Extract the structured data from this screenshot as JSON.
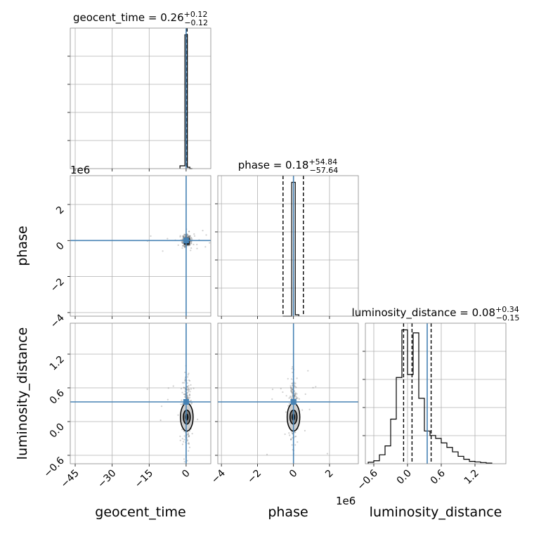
{
  "chart_data": {
    "type": "corner",
    "parameters": [
      "geocent_time",
      "phase",
      "luminosity_distance"
    ],
    "titles": {
      "geocent_time": {
        "name": "geocent_time",
        "median": "0.26",
        "plus": "+0.12",
        "minus": "−0.12"
      },
      "phase": {
        "name": "phase",
        "median": "0.18",
        "plus": "+54.84",
        "minus": "−57.64"
      },
      "luminosity_distance": {
        "name": "luminosity_distance",
        "median": "0.08",
        "plus": "+0.34",
        "minus": "−0.15"
      }
    },
    "axis_labels": {
      "geocent_time": "geocent_time",
      "phase": "phase",
      "luminosity_distance": "luminosity_distance"
    },
    "offset_text": {
      "phase_x": "1e6",
      "phase_y": "1e6"
    },
    "ranges": {
      "geocent_time": [
        -47,
        10
      ],
      "phase": [
        -4.2,
        3.6
      ],
      "luminosity_distance": [
        -0.75,
        1.75
      ]
    },
    "ticks": {
      "geocent_time": {
        "values": [
          -45,
          -30,
          -15,
          0
        ],
        "labels": [
          "−45",
          "−30",
          "−15",
          "0"
        ]
      },
      "phase": {
        "values": [
          -4,
          -2,
          0,
          2
        ],
        "labels": [
          "−4",
          "−2",
          "0",
          "2"
        ]
      },
      "luminosity_distance": {
        "values": [
          -0.6,
          0.0,
          0.6,
          1.2
        ],
        "labels": [
          "−0.6",
          "0.0",
          "0.6",
          "1.2"
        ]
      }
    },
    "truths": {
      "geocent_time": 0.0,
      "phase": 0.0,
      "luminosity_distance": 0.35
    },
    "quantiles": {
      "geocent_time": [
        0.14,
        0.26,
        0.38
      ],
      "phase": [
        -0.58,
        0.0,
        0.55
      ],
      "luminosity_distance": [
        -0.07,
        0.08,
        0.42
      ]
    },
    "histograms": {
      "geocent_time": {
        "edges": [
          -2.5,
          -0.5,
          0.5,
          1.5,
          2.5
        ],
        "counts": [
          0.02,
          0.96,
          0.01,
          0.0
        ]
      },
      "phase": {
        "edges": [
          -0.6,
          -0.1,
          0.1,
          0.3
        ],
        "counts": [
          0.0,
          0.95,
          0.01
        ]
      },
      "luminosity_distance": {
        "edges": [
          -0.7,
          -0.6,
          -0.5,
          -0.4,
          -0.3,
          -0.2,
          -0.1,
          0.0,
          0.1,
          0.2,
          0.3,
          0.4,
          0.5,
          0.6,
          0.7,
          0.8,
          0.9,
          1.0,
          1.1,
          1.2,
          1.3,
          1.4,
          1.5
        ],
        "counts": [
          0.005,
          0.01,
          0.03,
          0.06,
          0.15,
          0.29,
          0.45,
          0.3,
          0.44,
          0.22,
          0.11,
          0.095,
          0.085,
          0.07,
          0.055,
          0.04,
          0.025,
          0.015,
          0.008,
          0.006,
          0.004,
          0.002
        ]
      }
    },
    "grid": true
  }
}
